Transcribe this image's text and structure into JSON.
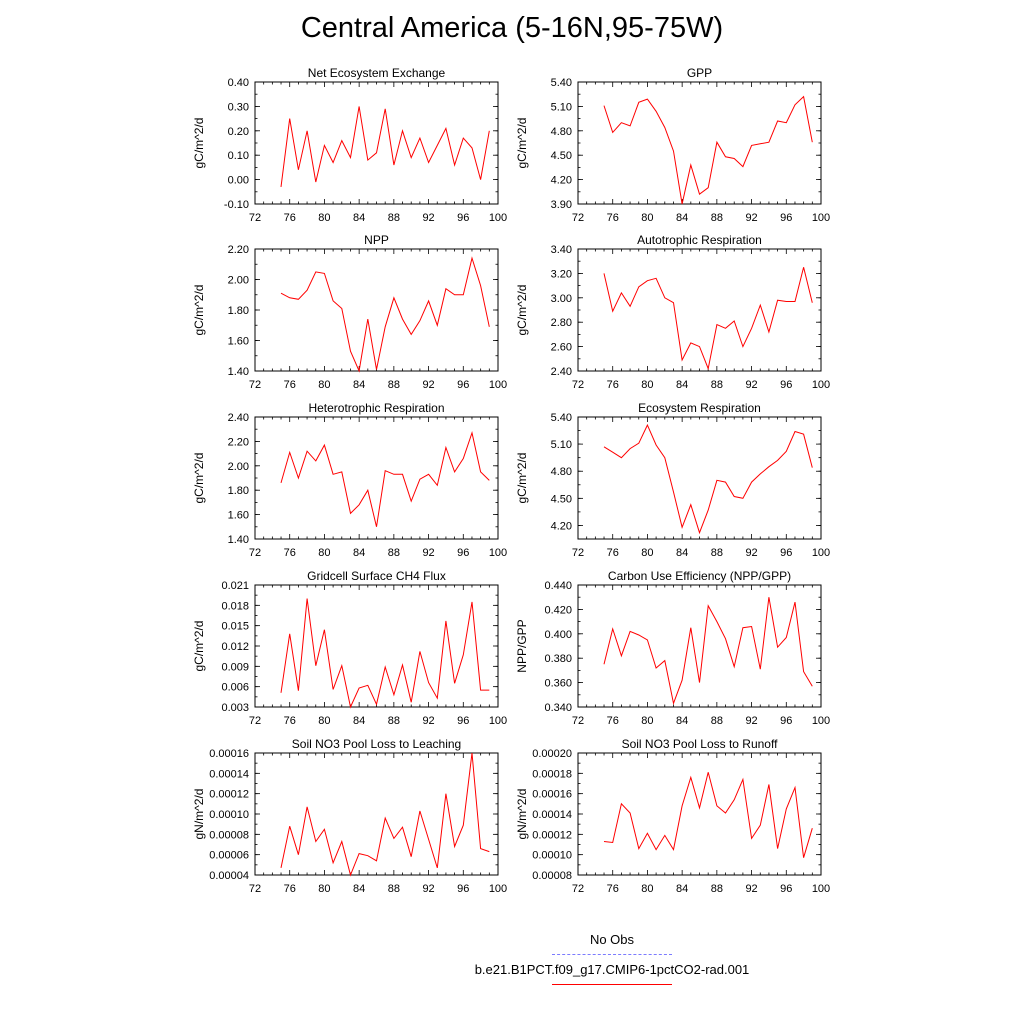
{
  "title": "Central America (5-16N,95-75W)",
  "legend": {
    "entries": [
      {
        "label": "No Obs",
        "color": "#7b7bff",
        "dash": "dashed"
      },
      {
        "label": "b.e21.B1PCT.f09_g17.CMIP6-1pctCO2-rad.001",
        "color": "#ff0000",
        "dash": "solid"
      }
    ]
  },
  "chart_data": [
    {
      "type": "line",
      "title": "Net Ecosystem Exchange",
      "ylabel": "gC/m^2/d",
      "xlim": [
        72,
        100
      ],
      "xticks": [
        "72",
        "76",
        "80",
        "84",
        "88",
        "92",
        "96",
        "100"
      ],
      "ylim": [
        -0.1,
        0.4
      ],
      "yticks": [
        "-0.10",
        "0.00",
        "0.10",
        "0.20",
        "0.30",
        "0.40"
      ],
      "series": [
        {
          "color": "#ff0000",
          "x": [
            75,
            76,
            77,
            78,
            79,
            80,
            81,
            82,
            83,
            84,
            85,
            86,
            87,
            88,
            89,
            90,
            91,
            92,
            93,
            94,
            95,
            96,
            97,
            98,
            99
          ],
          "y": [
            -0.03,
            0.25,
            0.04,
            0.2,
            -0.01,
            0.14,
            0.07,
            0.16,
            0.09,
            0.3,
            0.08,
            0.11,
            0.29,
            0.06,
            0.2,
            0.09,
            0.17,
            0.07,
            0.14,
            0.21,
            0.06,
            0.17,
            0.13,
            0.0,
            0.2
          ]
        }
      ]
    },
    {
      "type": "line",
      "title": "GPP",
      "ylabel": "gC/m^2/d",
      "xlim": [
        72,
        100
      ],
      "xticks": [
        "72",
        "76",
        "80",
        "84",
        "88",
        "92",
        "96",
        "100"
      ],
      "ylim": [
        3.9,
        5.4
      ],
      "yticks": [
        "3.90",
        "4.20",
        "4.50",
        "4.80",
        "5.10",
        "5.40"
      ],
      "series": [
        {
          "color": "#ff0000",
          "x": [
            75,
            76,
            77,
            78,
            79,
            80,
            81,
            82,
            83,
            84,
            85,
            86,
            87,
            88,
            89,
            90,
            91,
            92,
            93,
            94,
            95,
            96,
            97,
            98,
            99
          ],
          "y": [
            5.11,
            4.78,
            4.9,
            4.86,
            5.15,
            5.19,
            5.04,
            4.84,
            4.55,
            3.9,
            4.38,
            4.02,
            4.1,
            4.66,
            4.48,
            4.46,
            4.36,
            4.62,
            4.64,
            4.66,
            4.92,
            4.9,
            5.12,
            5.22,
            4.66
          ]
        }
      ]
    },
    {
      "type": "line",
      "title": "NPP",
      "ylabel": "gC/m^2/d",
      "xlim": [
        72,
        100
      ],
      "xticks": [
        "72",
        "76",
        "80",
        "84",
        "88",
        "92",
        "96",
        "100"
      ],
      "ylim": [
        1.4,
        2.2
      ],
      "yticks": [
        "1.40",
        "1.60",
        "1.80",
        "2.00",
        "2.20"
      ],
      "series": [
        {
          "color": "#ff0000",
          "x": [
            75,
            76,
            77,
            78,
            79,
            80,
            81,
            82,
            83,
            84,
            85,
            86,
            87,
            88,
            89,
            90,
            91,
            92,
            93,
            94,
            95,
            96,
            97,
            98,
            99
          ],
          "y": [
            1.91,
            1.88,
            1.87,
            1.93,
            2.05,
            2.04,
            1.86,
            1.81,
            1.53,
            1.4,
            1.74,
            1.41,
            1.69,
            1.88,
            1.74,
            1.64,
            1.73,
            1.86,
            1.7,
            1.94,
            1.9,
            1.9,
            2.14,
            1.96,
            1.69
          ]
        }
      ]
    },
    {
      "type": "line",
      "title": "Autotrophic Respiration",
      "ylabel": "gC/m^2/d",
      "xlim": [
        72,
        100
      ],
      "xticks": [
        "72",
        "76",
        "80",
        "84",
        "88",
        "92",
        "96",
        "100"
      ],
      "ylim": [
        2.4,
        3.4
      ],
      "yticks": [
        "2.40",
        "2.60",
        "2.80",
        "3.00",
        "3.20",
        "3.40"
      ],
      "series": [
        {
          "color": "#ff0000",
          "x": [
            75,
            76,
            77,
            78,
            79,
            80,
            81,
            82,
            83,
            84,
            85,
            86,
            87,
            88,
            89,
            90,
            91,
            92,
            93,
            94,
            95,
            96,
            97,
            98,
            99
          ],
          "y": [
            3.2,
            2.89,
            3.04,
            2.93,
            3.09,
            3.14,
            3.16,
            3.0,
            2.96,
            2.49,
            2.63,
            2.6,
            2.42,
            2.78,
            2.75,
            2.81,
            2.6,
            2.75,
            2.94,
            2.72,
            2.98,
            2.97,
            2.97,
            3.25,
            2.96
          ]
        }
      ]
    },
    {
      "type": "line",
      "title": "Heterotrophic Respiration",
      "ylabel": "gC/m^2/d",
      "xlim": [
        72,
        100
      ],
      "xticks": [
        "72",
        "76",
        "80",
        "84",
        "88",
        "92",
        "96",
        "100"
      ],
      "ylim": [
        1.4,
        2.4
      ],
      "yticks": [
        "1.40",
        "1.60",
        "1.80",
        "2.00",
        "2.20",
        "2.40"
      ],
      "series": [
        {
          "color": "#ff0000",
          "x": [
            75,
            76,
            77,
            78,
            79,
            80,
            81,
            82,
            83,
            84,
            85,
            86,
            87,
            88,
            89,
            90,
            91,
            92,
            93,
            94,
            95,
            96,
            97,
            98,
            99
          ],
          "y": [
            1.86,
            2.11,
            1.9,
            2.12,
            2.04,
            2.17,
            1.93,
            1.95,
            1.61,
            1.68,
            1.8,
            1.5,
            1.96,
            1.93,
            1.93,
            1.71,
            1.89,
            1.93,
            1.84,
            2.15,
            1.95,
            2.06,
            2.27,
            1.95,
            1.88
          ]
        }
      ]
    },
    {
      "type": "line",
      "title": "Ecosystem Respiration",
      "ylabel": "gC/m^2/d",
      "xlim": [
        72,
        100
      ],
      "xticks": [
        "72",
        "76",
        "80",
        "84",
        "88",
        "92",
        "96",
        "100"
      ],
      "ylim": [
        4.05,
        5.4
      ],
      "yticks": [
        "4.20",
        "4.50",
        "4.80",
        "5.10",
        "5.40"
      ],
      "series": [
        {
          "color": "#ff0000",
          "x": [
            75,
            76,
            77,
            78,
            79,
            80,
            81,
            82,
            83,
            84,
            85,
            86,
            87,
            88,
            89,
            90,
            91,
            92,
            93,
            94,
            95,
            96,
            97,
            98,
            99
          ],
          "y": [
            5.07,
            5.01,
            4.95,
            5.05,
            5.11,
            5.31,
            5.09,
            4.95,
            4.57,
            4.18,
            4.43,
            4.12,
            4.37,
            4.7,
            4.68,
            4.52,
            4.5,
            4.68,
            4.77,
            4.85,
            4.92,
            5.02,
            5.24,
            5.21,
            4.84
          ]
        }
      ]
    },
    {
      "type": "line",
      "title": "Gridcell Surface CH4 Flux",
      "ylabel": "gC/m^2/d",
      "xlim": [
        72,
        100
      ],
      "xticks": [
        "72",
        "76",
        "80",
        "84",
        "88",
        "92",
        "96",
        "100"
      ],
      "ylim": [
        0.003,
        0.021
      ],
      "yticks": [
        "0.003",
        "0.006",
        "0.009",
        "0.012",
        "0.015",
        "0.018",
        "0.021"
      ],
      "series": [
        {
          "color": "#ff0000",
          "x": [
            75,
            76,
            77,
            78,
            79,
            80,
            81,
            82,
            83,
            84,
            85,
            86,
            87,
            88,
            89,
            90,
            91,
            92,
            93,
            94,
            95,
            96,
            97,
            98,
            99
          ],
          "y": [
            0.0051,
            0.0138,
            0.0054,
            0.019,
            0.0091,
            0.0144,
            0.0056,
            0.0091,
            0.003,
            0.0058,
            0.0062,
            0.0034,
            0.0089,
            0.0048,
            0.0092,
            0.0037,
            0.0112,
            0.0066,
            0.0043,
            0.0157,
            0.0065,
            0.0107,
            0.0185,
            0.0055,
            0.0055
          ]
        }
      ]
    },
    {
      "type": "line",
      "title": "Carbon Use Efficiency (NPP/GPP)",
      "ylabel": "NPP/GPP",
      "xlim": [
        72,
        100
      ],
      "xticks": [
        "72",
        "76",
        "80",
        "84",
        "88",
        "92",
        "96",
        "100"
      ],
      "ylim": [
        0.34,
        0.44
      ],
      "yticks": [
        "0.340",
        "0.360",
        "0.380",
        "0.400",
        "0.420",
        "0.440"
      ],
      "series": [
        {
          "color": "#ff0000",
          "x": [
            75,
            76,
            77,
            78,
            79,
            80,
            81,
            82,
            83,
            84,
            85,
            86,
            87,
            88,
            89,
            90,
            91,
            92,
            93,
            94,
            95,
            96,
            97,
            98,
            99
          ],
          "y": [
            0.375,
            0.404,
            0.382,
            0.402,
            0.399,
            0.395,
            0.372,
            0.378,
            0.343,
            0.362,
            0.405,
            0.36,
            0.423,
            0.41,
            0.396,
            0.373,
            0.405,
            0.406,
            0.371,
            0.43,
            0.389,
            0.397,
            0.426,
            0.369,
            0.357
          ]
        }
      ]
    },
    {
      "type": "line",
      "title": "Soil NO3 Pool Loss to Leaching",
      "ylabel": "gN/m^2/d",
      "xlim": [
        72,
        100
      ],
      "xticks": [
        "72",
        "76",
        "80",
        "84",
        "88",
        "92",
        "96",
        "100"
      ],
      "ylim": [
        4e-05,
        0.00016
      ],
      "yticks": [
        "0.00004",
        "0.00006",
        "0.00008",
        "0.00010",
        "0.00012",
        "0.00014",
        "0.00016"
      ],
      "series": [
        {
          "color": "#ff0000",
          "x": [
            75,
            76,
            77,
            78,
            79,
            80,
            81,
            82,
            83,
            84,
            85,
            86,
            87,
            88,
            89,
            90,
            91,
            92,
            93,
            94,
            95,
            96,
            97,
            98,
            99
          ],
          "y": [
            4.7e-05,
            8.8e-05,
            6e-05,
            0.000107,
            7.3e-05,
            8.5e-05,
            5.2e-05,
            7.3e-05,
            4e-05,
            6.1e-05,
            5.9e-05,
            5.4e-05,
            9.6e-05,
            7.6e-05,
            8.7e-05,
            5.8e-05,
            0.000103,
            7.5e-05,
            4.7e-05,
            0.00012,
            6.8e-05,
            8.9e-05,
            0.00016,
            6.6e-05,
            6.3e-05
          ]
        }
      ]
    },
    {
      "type": "line",
      "title": "Soil NO3 Pool Loss to Runoff",
      "ylabel": "gN/m^2/d",
      "xlim": [
        72,
        100
      ],
      "xticks": [
        "72",
        "76",
        "80",
        "84",
        "88",
        "92",
        "96",
        "100"
      ],
      "ylim": [
        8e-05,
        0.0002
      ],
      "yticks": [
        "0.00008",
        "0.00010",
        "0.00012",
        "0.00014",
        "0.00016",
        "0.00018",
        "0.00020"
      ],
      "series": [
        {
          "color": "#ff0000",
          "x": [
            75,
            76,
            77,
            78,
            79,
            80,
            81,
            82,
            83,
            84,
            85,
            86,
            87,
            88,
            89,
            90,
            91,
            92,
            93,
            94,
            95,
            96,
            97,
            98,
            99
          ],
          "y": [
            0.000113,
            0.000112,
            0.00015,
            0.000141,
            0.000106,
            0.000121,
            0.000105,
            0.000119,
            0.000105,
            0.000148,
            0.000176,
            0.000146,
            0.000181,
            0.000148,
            0.000141,
            0.000154,
            0.000174,
            0.000116,
            0.000129,
            0.000169,
            0.000106,
            0.000145,
            0.000166,
            9.7e-05,
            0.000126
          ]
        }
      ]
    }
  ]
}
